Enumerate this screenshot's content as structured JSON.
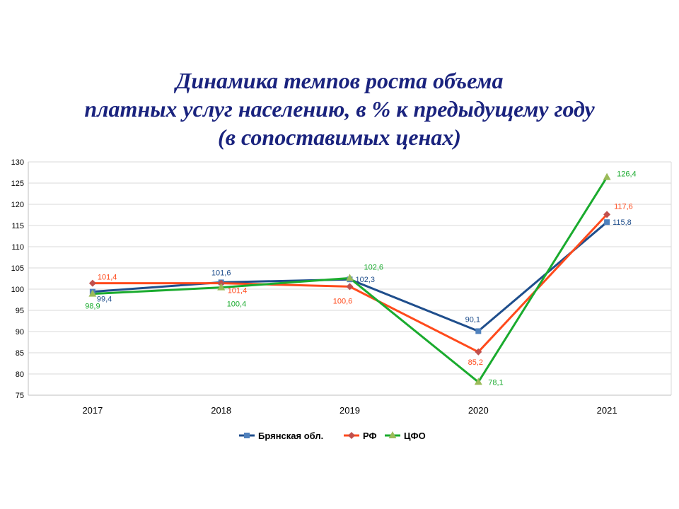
{
  "title_lines": [
    "Динамика темпов роста объема",
    "платных услуг населению, в % к предыдущему году",
    "(в сопоставимых ценах)"
  ],
  "chart_data": {
    "type": "line",
    "title": "Динамика темпов роста объема платных услуг населению, в % к предыдущему году (в сопоставимых ценах)",
    "x": [
      "2017",
      "2018",
      "2019",
      "2020",
      "2021"
    ],
    "ylim": [
      75,
      130
    ],
    "yticks": [
      75,
      80,
      85,
      90,
      95,
      100,
      105,
      110,
      115,
      120,
      125,
      130
    ],
    "ytick_labels": [
      "75",
      "80",
      "85",
      "90",
      "95",
      "100",
      "105",
      "110",
      "115",
      "120",
      "125",
      "130"
    ],
    "grid": true,
    "legend": "bottom",
    "series": [
      {
        "name": "Брянская обл.",
        "color": "#1f4e8c",
        "marker": "square",
        "values": [
          99.4,
          101.6,
          102.3,
          90.1,
          115.8
        ],
        "labels": [
          "99,4",
          "101,6",
          "102,3",
          "90,1",
          "115,8"
        ]
      },
      {
        "name": "РФ",
        "color": "#ff4a1c",
        "marker": "diamond",
        "values": [
          101.4,
          101.4,
          100.6,
          85.2,
          117.6
        ],
        "labels": [
          "101,4",
          "101,4",
          "100,6",
          "85,2",
          "117,6"
        ]
      },
      {
        "name": "ЦФО",
        "color": "#1aab2e",
        "marker": "triangle",
        "values": [
          98.9,
          100.4,
          102.6,
          78.1,
          126.4
        ],
        "labels": [
          "98,9",
          "100,4",
          "102,6",
          "78,1",
          "126,4"
        ]
      }
    ]
  },
  "colors": {
    "title": "#1a237e",
    "grid": "#d9d9d9",
    "frame": "#bfbfbf",
    "marker_blue": "#4f81bd",
    "marker_red": "#c0504d",
    "marker_green": "#9bbb59"
  }
}
